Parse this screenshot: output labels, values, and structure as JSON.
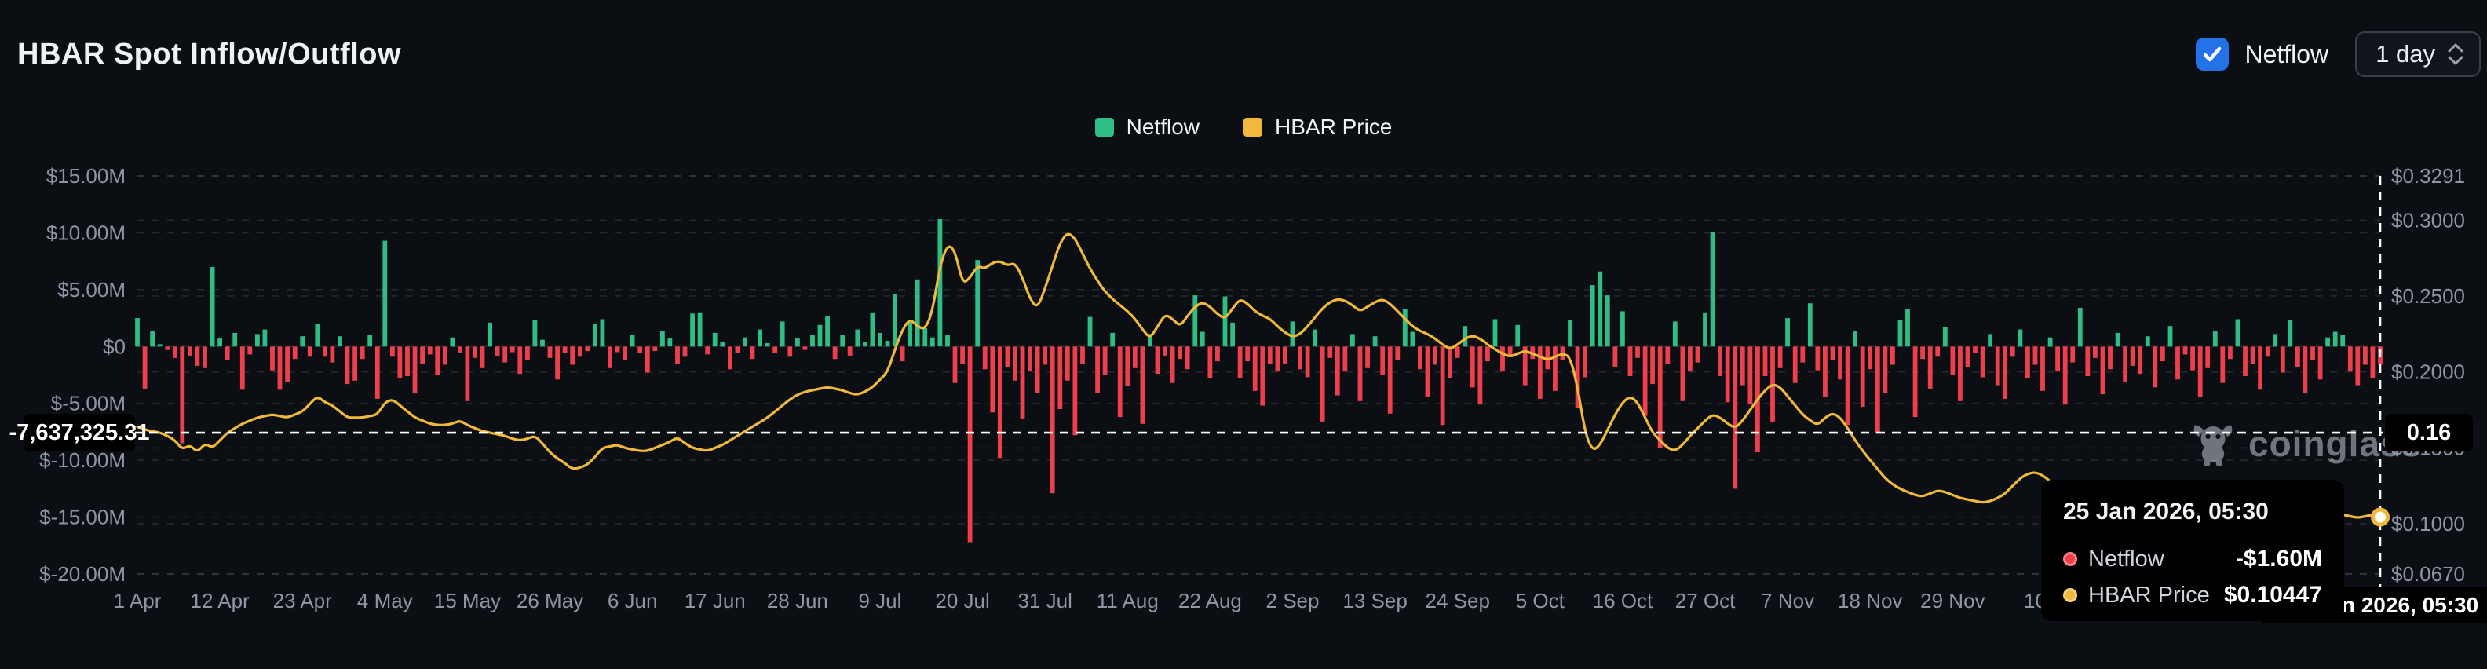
{
  "header": {
    "title": "HBAR Spot Inflow/Outflow",
    "netflow_toggle_label": "Netflow",
    "netflow_toggle_checked": true,
    "interval_value": "1 day"
  },
  "legend": [
    {
      "label": "Netflow",
      "color": "#2ebd85"
    },
    {
      "label": "HBAR Price",
      "color": "#f1b93c"
    }
  ],
  "watermark": {
    "text": "coinglass"
  },
  "crosshair": {
    "left_value": "-7,637,325.31",
    "right_value": "0.16",
    "date": "25 Jan 2026, 05:30"
  },
  "tooltip": {
    "date": "25 Jan 2026, 05:30",
    "rows": [
      {
        "label": "Netflow",
        "value": "-$1.60M",
        "color": "#ee404c"
      },
      {
        "label": "HBAR Price",
        "value": "$0.10447",
        "color": "#f1b93c"
      }
    ]
  },
  "chart_data": {
    "type": "bar+line",
    "title": "HBAR Spot Inflow/Outflow",
    "interval": "1 day",
    "start_label": "1 Apr",
    "end_label": "25 Jan 2026, 05:30",
    "grid": true,
    "legend_position": "top-center",
    "x_tick_labels": [
      "1 Apr",
      "12 Apr",
      "23 Apr",
      "4 May",
      "15 May",
      "26 May",
      "6 Jun",
      "17 Jun",
      "28 Jun",
      "9 Jul",
      "20 Jul",
      "31 Jul",
      "11 Aug",
      "22 Aug",
      "2 Sep",
      "13 Sep",
      "24 Sep",
      "5 Oct",
      "16 Oct",
      "27 Oct",
      "7 Nov",
      "18 Nov",
      "29 Nov",
      "10"
    ],
    "x_tick_day_step": 11,
    "left_axis": {
      "name": "Netflow (USD)",
      "ylim": [
        -20,
        15
      ],
      "tick_values": [
        15,
        10,
        5,
        0,
        -5,
        -10,
        -15,
        -20
      ],
      "tick_labels": [
        "$15.00M",
        "$10.00M",
        "$5.00M",
        "$0",
        "$-5.00M",
        "$-10.00M",
        "$-15.00M",
        "$-20.00M"
      ]
    },
    "right_axis": {
      "name": "HBAR Price (USD)",
      "ylim": [
        0.067,
        0.3291
      ],
      "tick_values": [
        0.3291,
        0.3,
        0.25,
        0.2,
        0.15,
        0.1,
        0.067
      ],
      "tick_labels": [
        "$0.3291",
        "$0.3000",
        "$0.2500",
        "$0.2000",
        "$0.1500",
        "$0.1000",
        "$0.0670"
      ]
    },
    "series": [
      {
        "name": "Netflow",
        "type": "bar",
        "unit": "USD millions",
        "pos_color": "#2ebd85",
        "neg_color": "#ee404c",
        "values": [
          2.5,
          -3.7,
          1.4,
          0.2,
          -0.3,
          -1.0,
          -8.5,
          -0.8,
          -1.7,
          -1.9,
          7.0,
          0.7,
          -1.2,
          1.2,
          -3.8,
          -0.7,
          1.1,
          1.5,
          -2.1,
          -3.8,
          -3.1,
          -1.1,
          0.9,
          -0.9,
          2.0,
          -0.9,
          -1.4,
          0.9,
          -3.3,
          -3.0,
          -1.1,
          1.0,
          -4.6,
          9.3,
          -0.9,
          -2.8,
          -2.6,
          -4.1,
          -1.5,
          -0.7,
          -2.5,
          -1.6,
          0.8,
          -0.6,
          -4.8,
          -1.0,
          -1.9,
          2.1,
          -0.8,
          -1.4,
          -0.5,
          -2.4,
          -1.2,
          2.3,
          0.6,
          -1.0,
          -2.9,
          -0.6,
          -1.6,
          -0.9,
          -0.4,
          2.0,
          2.4,
          -1.9,
          -0.5,
          -1.2,
          1.0,
          -0.6,
          -2.3,
          -0.4,
          1.4,
          0.7,
          -1.5,
          -0.9,
          2.9,
          3.0,
          -0.7,
          1.2,
          0.4,
          -2.0,
          -0.6,
          0.8,
          -1.1,
          1.5,
          0.3,
          -0.6,
          2.2,
          -0.9,
          0.7,
          -0.3,
          1.0,
          1.9,
          2.7,
          -1.1,
          1.0,
          -0.8,
          1.5,
          0.4,
          3.0,
          1.2,
          0.5,
          4.6,
          -1.3,
          2.1,
          5.9,
          1.6,
          0.8,
          11.2,
          1.0,
          -3.2,
          -1.5,
          -17.2,
          7.6,
          -2.0,
          -5.8,
          -9.8,
          -1.8,
          -3.0,
          -6.4,
          -2.2,
          -4.1,
          -1.6,
          -12.9,
          -5.5,
          -3.0,
          -7.8,
          -1.5,
          2.6,
          -4.1,
          -2.5,
          1.2,
          -6.2,
          -3.5,
          -1.9,
          -6.8,
          1.1,
          -2.4,
          -0.8,
          -3.2,
          -1.1,
          -2.0,
          4.5,
          1.3,
          -2.8,
          -1.3,
          4.4,
          2.1,
          -2.8,
          -1.3,
          -3.9,
          -5.2,
          -1.5,
          -2.2,
          -1.5,
          2.2,
          -2.0,
          -2.7,
          1.5,
          -6.6,
          -1.0,
          -4.3,
          -2.2,
          1.1,
          -4.8,
          -1.9,
          0.9,
          -2.5,
          -5.9,
          -1.2,
          3.3,
          1.3,
          -2.0,
          -4.4,
          -1.6,
          -6.9,
          -2.8,
          -1.0,
          1.8,
          -3.6,
          -5.1,
          -1.3,
          2.4,
          -2.2,
          -0.8,
          1.9,
          -3.4,
          -1.1,
          -4.6,
          -2.0,
          -3.9,
          -1.2,
          2.3,
          -5.4,
          -2.7,
          5.4,
          6.6,
          4.5,
          -1.8,
          3.1,
          -2.6,
          -1.0,
          -6.1,
          -3.3,
          -8.9,
          -1.5,
          2.2,
          -4.8,
          -2.2,
          -1.4,
          3.0,
          10.1,
          -2.6,
          -4.9,
          -12.5,
          -3.4,
          -5.1,
          -9.3,
          -2.6,
          -6.6,
          -1.9,
          2.5,
          -3.2,
          -1.4,
          3.8,
          -2.1,
          -4.4,
          -1.2,
          -2.9,
          -6.9,
          1.4,
          -5.3,
          -2.0,
          -7.6,
          -4.1,
          -1.6,
          2.3,
          3.3,
          -6.2,
          -1.1,
          -3.7,
          -0.9,
          1.7,
          -2.5,
          -4.8,
          -1.8,
          -0.6,
          -2.7,
          1.1,
          -3.4,
          -4.6,
          -0.9,
          1.5,
          -2.8,
          -1.6,
          -3.9,
          0.8,
          -2.2,
          -5.1,
          -1.4,
          3.4,
          -2.6,
          -1.0,
          -4.2,
          -2.0,
          1.2,
          -3.1,
          -1.7,
          -2.4,
          0.9,
          -3.6,
          -1.3,
          1.8,
          -2.9,
          -0.7,
          -2.1,
          -4.4,
          -1.9,
          1.4,
          -3.2,
          -1.1,
          2.4,
          -2.6,
          -1.5,
          -3.8,
          -0.9,
          1.1,
          -2.3,
          2.3,
          -1.8,
          -4.1,
          -1.2,
          -2.9,
          0.8,
          1.3,
          1.0,
          -2.2,
          -3.4,
          -1.6,
          -2.8,
          -1.6
        ]
      },
      {
        "name": "HBAR Price",
        "type": "line",
        "unit": "USD",
        "color": "#f1b93c",
        "last_value": 0.10447,
        "values": [
          0.164,
          0.162,
          0.161,
          0.16,
          0.158,
          0.155,
          0.149,
          0.152,
          0.147,
          0.153,
          0.15,
          0.155,
          0.16,
          0.163,
          0.166,
          0.168,
          0.17,
          0.171,
          0.172,
          0.171,
          0.17,
          0.172,
          0.174,
          0.179,
          0.184,
          0.18,
          0.178,
          0.174,
          0.17,
          0.17,
          0.17,
          0.171,
          0.172,
          0.18,
          0.182,
          0.178,
          0.174,
          0.17,
          0.168,
          0.166,
          0.165,
          0.165,
          0.166,
          0.168,
          0.165,
          0.163,
          0.161,
          0.16,
          0.159,
          0.158,
          0.156,
          0.155,
          0.156,
          0.158,
          0.153,
          0.147,
          0.143,
          0.14,
          0.136,
          0.137,
          0.139,
          0.144,
          0.15,
          0.151,
          0.152,
          0.15,
          0.149,
          0.148,
          0.148,
          0.15,
          0.152,
          0.154,
          0.157,
          0.153,
          0.15,
          0.149,
          0.148,
          0.15,
          0.152,
          0.155,
          0.158,
          0.161,
          0.164,
          0.167,
          0.17,
          0.174,
          0.178,
          0.182,
          0.185,
          0.187,
          0.188,
          0.189,
          0.19,
          0.189,
          0.188,
          0.186,
          0.185,
          0.187,
          0.19,
          0.195,
          0.2,
          0.215,
          0.228,
          0.235,
          0.23,
          0.228,
          0.24,
          0.27,
          0.284,
          0.28,
          0.258,
          0.262,
          0.27,
          0.268,
          0.272,
          0.273,
          0.27,
          0.272,
          0.262,
          0.248,
          0.242,
          0.255,
          0.27,
          0.285,
          0.292,
          0.288,
          0.278,
          0.268,
          0.26,
          0.253,
          0.248,
          0.244,
          0.24,
          0.235,
          0.228,
          0.222,
          0.23,
          0.238,
          0.235,
          0.23,
          0.237,
          0.243,
          0.246,
          0.243,
          0.238,
          0.235,
          0.242,
          0.248,
          0.245,
          0.24,
          0.237,
          0.235,
          0.23,
          0.226,
          0.223,
          0.225,
          0.23,
          0.236,
          0.242,
          0.246,
          0.248,
          0.247,
          0.244,
          0.24,
          0.243,
          0.246,
          0.248,
          0.245,
          0.24,
          0.235,
          0.23,
          0.227,
          0.225,
          0.222,
          0.218,
          0.215,
          0.218,
          0.222,
          0.224,
          0.222,
          0.218,
          0.215,
          0.212,
          0.21,
          0.212,
          0.214,
          0.212,
          0.21,
          0.208,
          0.21,
          0.212,
          0.21,
          0.19,
          0.16,
          0.148,
          0.152,
          0.162,
          0.172,
          0.18,
          0.184,
          0.18,
          0.17,
          0.16,
          0.155,
          0.15,
          0.148,
          0.152,
          0.158,
          0.163,
          0.168,
          0.172,
          0.17,
          0.166,
          0.163,
          0.168,
          0.175,
          0.182,
          0.188,
          0.192,
          0.19,
          0.184,
          0.178,
          0.172,
          0.168,
          0.165,
          0.17,
          0.173,
          0.17,
          0.163,
          0.155,
          0.148,
          0.142,
          0.136,
          0.13,
          0.126,
          0.123,
          0.121,
          0.119,
          0.118,
          0.12,
          0.122,
          0.121,
          0.119,
          0.117,
          0.116,
          0.115,
          0.114,
          0.115,
          0.117,
          0.12,
          0.125,
          0.13,
          0.133,
          0.134,
          0.132,
          0.128,
          0.124,
          0.121,
          0.119,
          0.121,
          0.124,
          0.127,
          0.125,
          0.122,
          0.12,
          0.118,
          0.117,
          0.119,
          0.122,
          0.125,
          0.127,
          0.125,
          0.121,
          0.118,
          0.116,
          0.114,
          0.112,
          0.111,
          0.11,
          0.109,
          0.11,
          0.112,
          0.113,
          0.112,
          0.11,
          0.108,
          0.107,
          0.108,
          0.11,
          0.112,
          0.113,
          0.112,
          0.11,
          0.108,
          0.106,
          0.105,
          0.104,
          0.105,
          0.106,
          0.10447
        ]
      }
    ],
    "crosshair_point": {
      "date": "25 Jan 2026, 05:30",
      "netflow": -1.6,
      "price": 0.10447,
      "left_axis_readout": -7637325.31,
      "right_axis_readout": 0.16
    }
  },
  "colors": {
    "background": "#0b0e13",
    "green": "#2ebd85",
    "red": "#ee404c",
    "yellow": "#f1b93c",
    "checkbox_blue": "#2472e8",
    "axis_text": "#8f96a3",
    "grid": "rgba(255,255,255,0.11)"
  }
}
